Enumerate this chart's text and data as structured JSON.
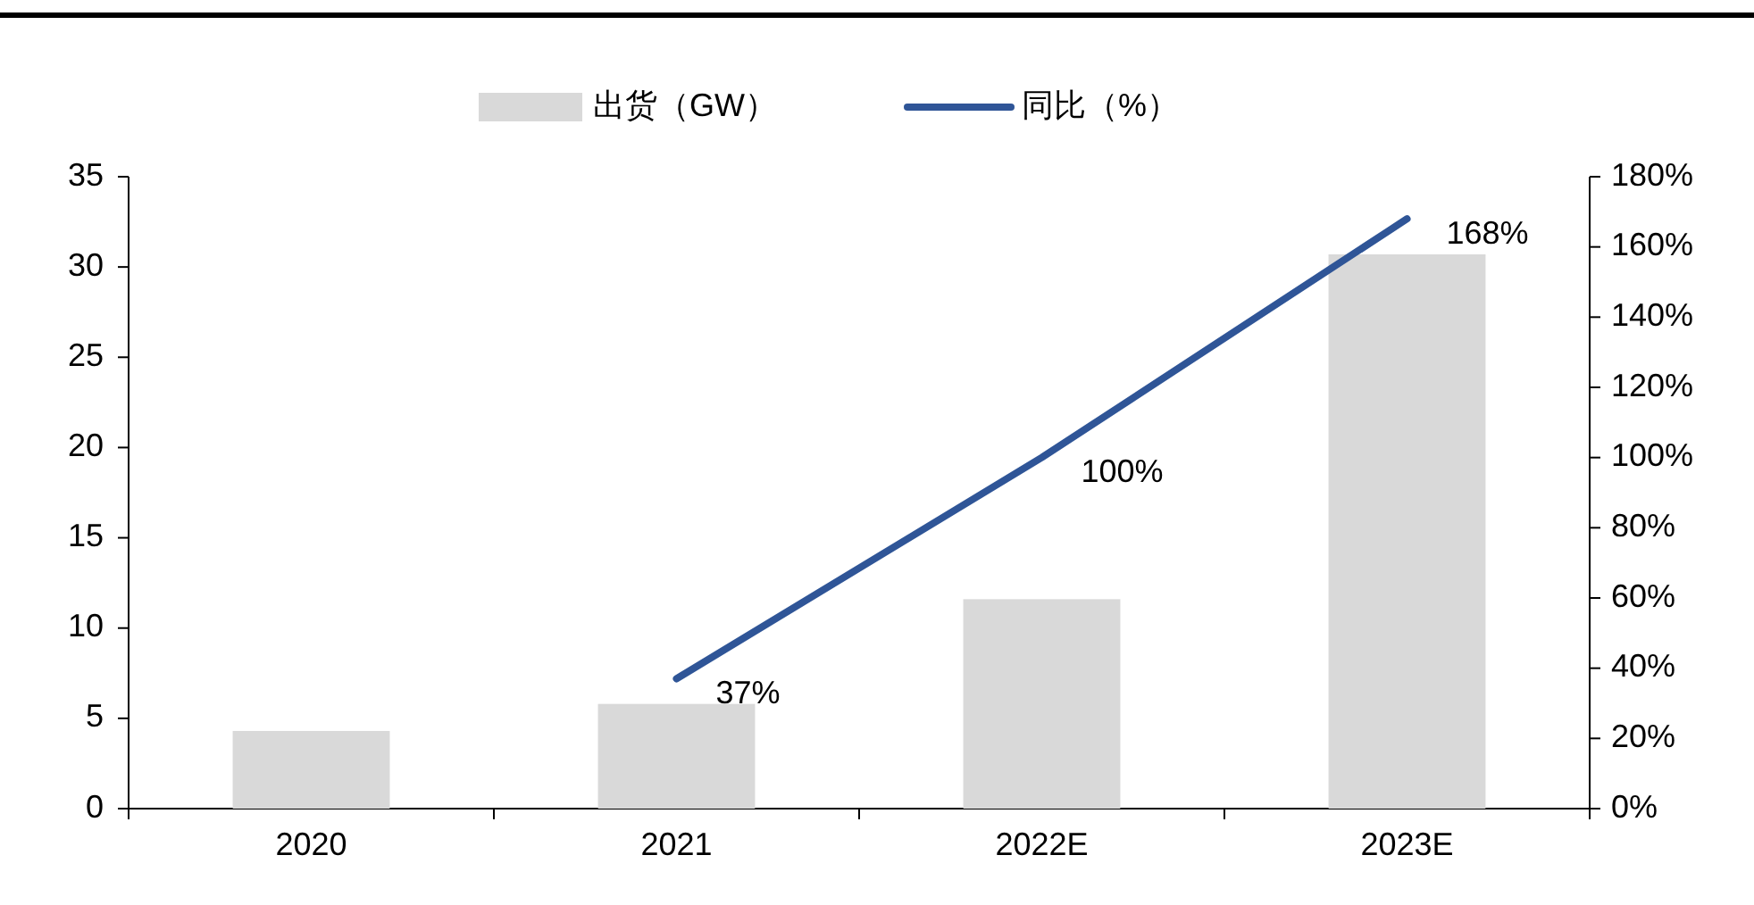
{
  "chart_data": {
    "type": "bar",
    "categories": [
      "2020",
      "2021",
      "2022E",
      "2023E"
    ],
    "series": [
      {
        "name": "出货（GW）",
        "color": "#d9d9d9",
        "values": [
          4.3,
          5.8,
          11.6,
          30.7
        ]
      },
      {
        "name": "同比（%）",
        "type": "line",
        "axis": "y2",
        "color": "#2f5597",
        "values": [
          null,
          37,
          100,
          168
        ],
        "value_labels": [
          null,
          "37%",
          "100%",
          "168%"
        ]
      }
    ],
    "ylim": [
      0,
      35
    ],
    "yticks": [
      0,
      5,
      10,
      15,
      20,
      25,
      30,
      35
    ],
    "y2lim": [
      0,
      180
    ],
    "y2ticks": [
      {
        "value": 0,
        "label": "0%"
      },
      {
        "value": 20,
        "label": "20%"
      },
      {
        "value": 40,
        "label": "40%"
      },
      {
        "value": 60,
        "label": "60%"
      },
      {
        "value": 80,
        "label": "80%"
      },
      {
        "value": 100,
        "label": "100%"
      },
      {
        "value": 120,
        "label": "120%"
      },
      {
        "value": 140,
        "label": "140%"
      },
      {
        "value": 160,
        "label": "160%"
      },
      {
        "value": 180,
        "label": "180%"
      }
    ],
    "grid": false,
    "legend": "top",
    "marker": "none",
    "line_style": "solid"
  }
}
